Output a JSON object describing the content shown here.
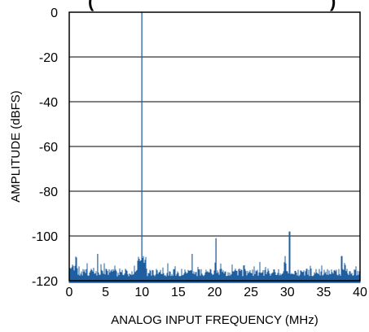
{
  "chart_data": {
    "type": "line",
    "title_fragments": [
      "(",
      ")"
    ],
    "xlabel": "ANALOG INPUT FREQUENCY (MHz)",
    "ylabel": "AMPLITUDE (dBFS)",
    "xlim": [
      0,
      40
    ],
    "ylim": [
      -120,
      0
    ],
    "x_ticks": [
      0,
      5,
      10,
      15,
      20,
      25,
      30,
      35,
      40
    ],
    "y_ticks": [
      0,
      -20,
      -40,
      -60,
      -80,
      -100,
      -120
    ],
    "x_tick_labels": [
      "0",
      "5",
      "10",
      "15",
      "20",
      "25",
      "30",
      "35",
      "40"
    ],
    "y_tick_labels": [
      "0",
      "-20",
      "-40",
      "-60",
      "-80",
      "-100",
      "-120"
    ],
    "grid": "horizontal",
    "line_color": "#1f5fa0",
    "noise_floor_dbfs": -117,
    "spurs": [
      {
        "x": 10.0,
        "y": 0
      },
      {
        "x": 20.2,
        "y": -101
      },
      {
        "x": 30.3,
        "y": -98
      },
      {
        "x": 3.9,
        "y": -108
      },
      {
        "x": 10.2,
        "y": -109
      },
      {
        "x": 16.9,
        "y": -108
      },
      {
        "x": 29.7,
        "y": -109
      },
      {
        "x": 37.5,
        "y": -109
      }
    ]
  }
}
